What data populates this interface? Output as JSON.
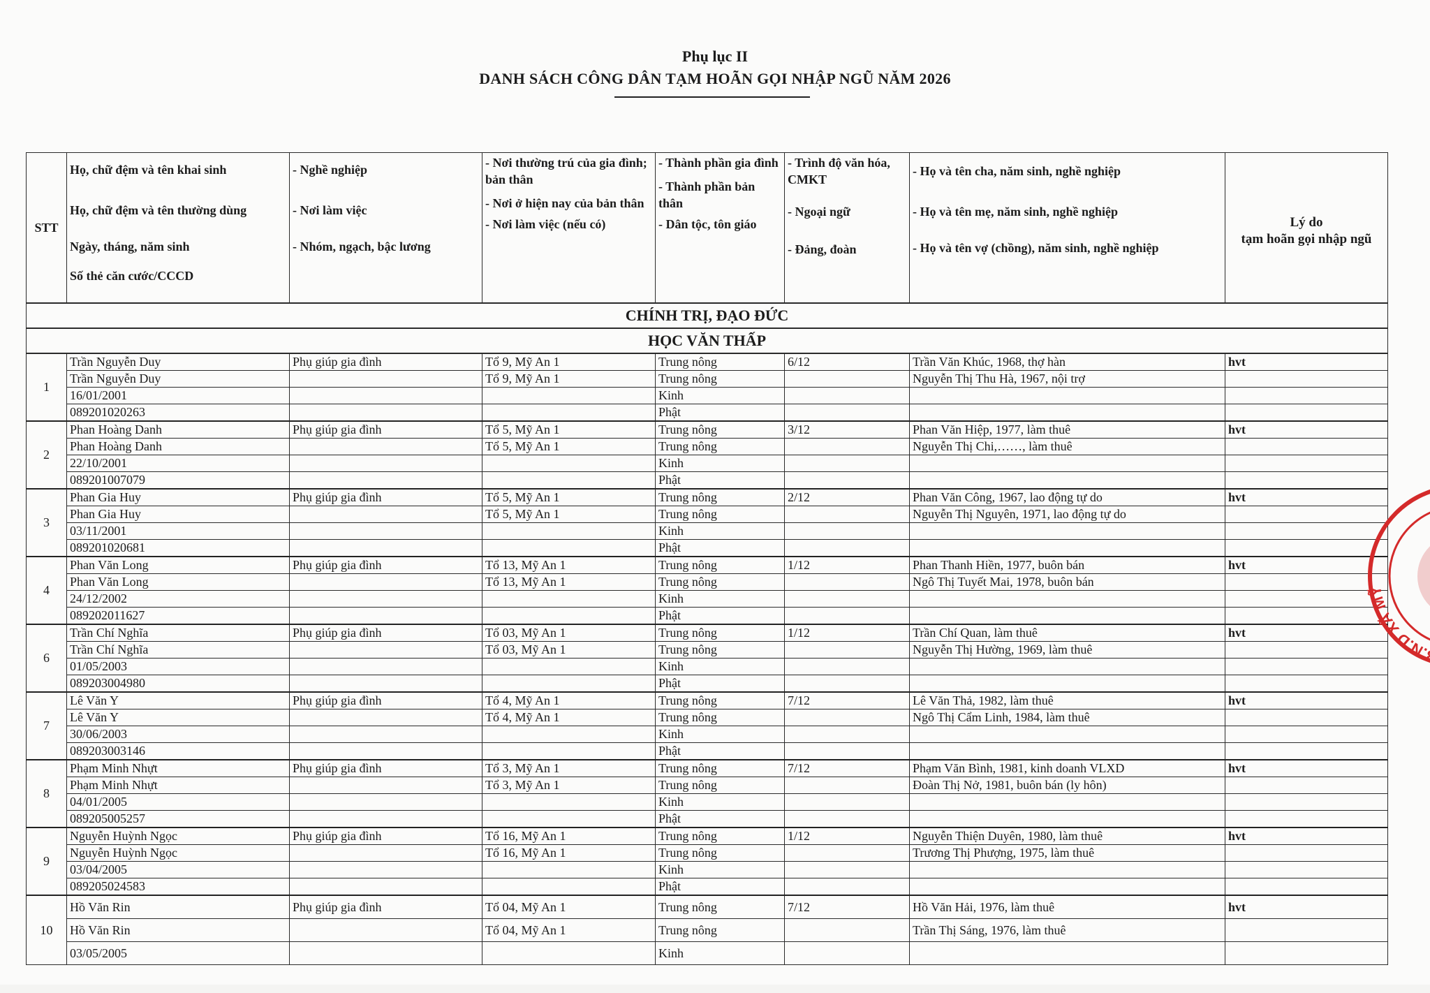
{
  "document": {
    "appendix": "Phụ lục II",
    "title": "DANH SÁCH CÔNG DÂN TẠM HOÃN GỌI NHẬP NGŨ NĂM 2026"
  },
  "header": {
    "stt": "STT",
    "col_name": [
      "Họ, chữ đệm và tên khai sinh",
      "Họ, chữ đệm và tên thường dùng",
      "Ngày, tháng, năm sinh",
      "Số thẻ căn cước/CCCD"
    ],
    "col_job": [
      "- Nghề nghiệp",
      "- Nơi làm việc",
      "- Nhóm, ngạch, bậc lương"
    ],
    "col_residence": [
      "- Nơi thường trú của gia đình; bản thân",
      "- Nơi ở hiện nay của bản thân",
      "- Nơi làm việc (nếu có)"
    ],
    "col_composition": [
      "- Thành phần gia đình",
      "- Thành phần bản thân",
      "- Dân tộc, tôn giáo"
    ],
    "col_education": [
      "- Trình độ văn hóa, CMKT",
      "- Ngoại ngữ",
      "- Đảng, đoàn"
    ],
    "col_family": [
      "- Họ và tên cha, năm sinh, nghề nghiệp",
      "- Họ và tên mẹ, năm sinh, nghề nghiệp",
      "- Họ và tên vợ (chồng), năm sinh, nghề nghiệp"
    ],
    "col_reason": [
      "Lý do",
      "tạm hoãn gọi nhập ngũ"
    ]
  },
  "sections": [
    "CHÍNH TRỊ, ĐẠO ĐỨC",
    "HỌC VĂN THẤP"
  ],
  "people": [
    {
      "stt": "1",
      "name": [
        "Trần Nguyễn Duy",
        "Trần Nguyễn Duy",
        "16/01/2001",
        "089201020263"
      ],
      "job": [
        "Phụ giúp gia đình",
        "",
        "",
        ""
      ],
      "residence": [
        "Tổ 9, Mỹ An 1",
        "Tổ 9, Mỹ An 1",
        "",
        ""
      ],
      "composition": [
        "Trung nông",
        "Trung nông",
        "Kinh",
        "Phật"
      ],
      "education": [
        "6/12",
        "",
        "",
        ""
      ],
      "family": [
        "Trần Văn Khúc, 1968, thợ hàn",
        "Nguyễn Thị Thu Hà, 1967, nội trợ",
        "",
        ""
      ],
      "reason": [
        "hvt",
        "",
        "",
        ""
      ]
    },
    {
      "stt": "2",
      "name": [
        "Phan Hoàng Danh",
        "Phan Hoàng Danh",
        "22/10/2001",
        "089201007079"
      ],
      "job": [
        "Phụ giúp gia đình",
        "",
        "",
        ""
      ],
      "residence": [
        "Tổ 5, Mỹ An 1",
        "Tổ 5, Mỹ An 1",
        "",
        ""
      ],
      "composition": [
        "Trung nông",
        "Trung nông",
        "Kinh",
        "Phật"
      ],
      "education": [
        "3/12",
        "",
        "",
        ""
      ],
      "family": [
        "Phan Văn Hiệp, 1977, làm thuê",
        "Nguyễn Thị Chi,……, làm thuê",
        "",
        ""
      ],
      "reason": [
        "hvt",
        "",
        "",
        ""
      ]
    },
    {
      "stt": "3",
      "name": [
        "Phan Gia Huy",
        "Phan Gia Huy",
        "03/11/2001",
        "089201020681"
      ],
      "job": [
        "Phụ giúp gia đình",
        "",
        "",
        ""
      ],
      "residence": [
        "Tổ 5, Mỹ An 1",
        "Tổ 5, Mỹ An 1",
        "",
        ""
      ],
      "composition": [
        "Trung nông",
        "Trung nông",
        "Kinh",
        "Phật"
      ],
      "education": [
        "2/12",
        "",
        "",
        ""
      ],
      "family": [
        "Phan Văn Công, 1967, lao động tự do",
        "Nguyễn Thị Nguyên, 1971, lao động tự do",
        "",
        ""
      ],
      "reason": [
        "hvt",
        "",
        "",
        ""
      ]
    },
    {
      "stt": "4",
      "name": [
        "Phan Văn Long",
        "Phan Văn Long",
        "24/12/2002",
        "089202011627"
      ],
      "job": [
        "Phụ giúp gia đình",
        "",
        "",
        ""
      ],
      "residence": [
        "Tổ 13, Mỹ An 1",
        "Tổ 13, Mỹ An 1",
        "",
        ""
      ],
      "composition": [
        "Trung nông",
        "Trung nông",
        "Kinh",
        "Phật"
      ],
      "education": [
        "1/12",
        "",
        "",
        ""
      ],
      "family": [
        "Phan Thanh Hiền, 1977, buôn bán",
        "Ngô Thị Tuyết Mai, 1978, buôn bán",
        "",
        ""
      ],
      "reason": [
        "hvt",
        "",
        "",
        ""
      ]
    },
    {
      "stt": "6",
      "name": [
        "Trần Chí Nghĩa",
        "Trần Chí Nghĩa",
        "01/05/2003",
        "089203004980"
      ],
      "job": [
        "Phụ giúp gia đình",
        "",
        "",
        ""
      ],
      "residence": [
        "Tổ 03, Mỹ An 1",
        "Tổ 03, Mỹ An 1",
        "",
        ""
      ],
      "composition": [
        "Trung nông",
        "Trung nông",
        "Kinh",
        "Phật"
      ],
      "education": [
        "1/12",
        "",
        "",
        ""
      ],
      "family": [
        "Trần Chí Quan, làm thuê",
        "Nguyễn Thị Hường, 1969, làm thuê",
        "",
        ""
      ],
      "reason": [
        "hvt",
        "",
        "",
        ""
      ]
    },
    {
      "stt": "7",
      "name": [
        "Lê Văn Y",
        "Lê Văn Y",
        "30/06/2003",
        "089203003146"
      ],
      "job": [
        "Phụ giúp gia đình",
        "",
        "",
        ""
      ],
      "residence": [
        "Tổ 4, Mỹ An 1",
        "Tổ 4, Mỹ An 1",
        "",
        ""
      ],
      "composition": [
        "Trung nông",
        "Trung nông",
        "Kinh",
        "Phật"
      ],
      "education": [
        "7/12",
        "",
        "",
        ""
      ],
      "family": [
        "Lê Văn Thả, 1982, làm thuê",
        "Ngô Thị Cẩm Linh, 1984, làm thuê",
        "",
        ""
      ],
      "reason": [
        "hvt",
        "",
        "",
        ""
      ]
    },
    {
      "stt": "8",
      "name": [
        "Phạm Minh Nhựt",
        "Phạm Minh Nhựt",
        "04/01/2005",
        "089205005257"
      ],
      "job": [
        "Phụ giúp gia đình",
        "",
        "",
        ""
      ],
      "residence": [
        "Tổ 3, Mỹ An 1",
        "Tổ 3, Mỹ An 1",
        "",
        ""
      ],
      "composition": [
        "Trung nông",
        "Trung nông",
        "Kinh",
        "Phật"
      ],
      "education": [
        "7/12",
        "",
        "",
        ""
      ],
      "family": [
        "Phạm Văn Bình, 1981, kinh doanh VLXD",
        "Đoàn Thị Nở, 1981, buôn bán (ly hôn)",
        "",
        ""
      ],
      "reason": [
        "hvt",
        "",
        "",
        ""
      ]
    },
    {
      "stt": "9",
      "name": [
        "Nguyễn Huỳnh Ngọc",
        "Nguyễn Huỳnh Ngọc",
        "03/04/2005",
        "089205024583"
      ],
      "job": [
        "Phụ giúp gia đình",
        "",
        "",
        ""
      ],
      "residence": [
        "Tổ 16, Mỹ An 1",
        "Tổ 16, Mỹ An 1",
        "",
        ""
      ],
      "composition": [
        "Trung nông",
        "Trung nông",
        "Kinh",
        "Phật"
      ],
      "education": [
        "1/12",
        "",
        "",
        ""
      ],
      "family": [
        "Nguyễn Thiện Duyên, 1980, làm thuê",
        "Trương Thị Phượng, 1975, làm thuê",
        "",
        ""
      ],
      "reason": [
        "hvt",
        "",
        "",
        ""
      ]
    },
    {
      "stt": "10",
      "name": [
        "Hồ Văn Rin",
        "Hồ Văn Rin",
        "03/05/2005"
      ],
      "job": [
        "Phụ giúp gia đình",
        "",
        ""
      ],
      "residence": [
        "Tổ 04, Mỹ An 1",
        "Tổ 04, Mỹ An 1",
        ""
      ],
      "composition": [
        "Trung nông",
        "Trung nông",
        "Kinh"
      ],
      "education": [
        "7/12",
        "",
        ""
      ],
      "family": [
        "Hồ Văn Hải, 1976, làm thuê",
        "Trần Thị Sáng, 1976, làm thuê",
        ""
      ],
      "reason": [
        "hvt",
        "",
        ""
      ]
    }
  ],
  "stamp": {
    "text": "U.B.N.D XÃ MỸ",
    "color": "#d42a2a"
  }
}
